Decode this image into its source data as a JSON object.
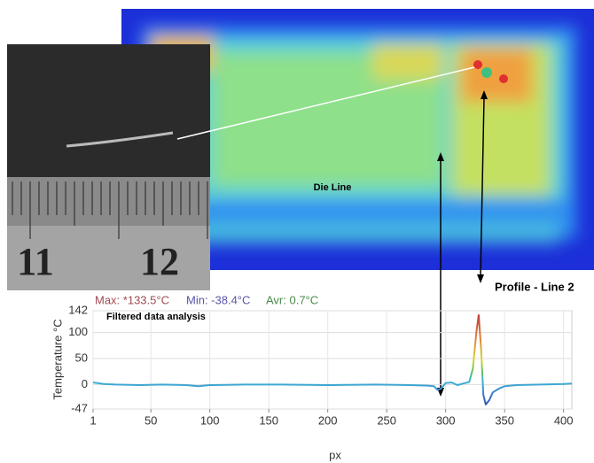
{
  "annotations": {
    "die_line": "Die Line",
    "profile": "Profile - Line 2",
    "filtered": "Filtered data analysis",
    "ruler_labels": [
      "11",
      "12"
    ]
  },
  "chart_data": {
    "type": "line",
    "stats": [
      "Max: *133.5°C",
      "Min: -38.4°C",
      "Avr: 0.7°C"
    ],
    "y_label": "Temperature °C",
    "x_label": "px",
    "x": [
      1,
      10,
      20,
      40,
      60,
      80,
      90,
      100,
      130,
      160,
      200,
      240,
      270,
      285,
      290,
      293,
      296,
      300,
      305,
      310,
      315,
      320,
      323,
      326,
      328,
      330,
      332,
      334,
      337,
      340,
      345,
      350,
      360,
      380,
      400,
      407
    ],
    "series": [
      {
        "color": "#40b4d8",
        "values": [
          4,
          1,
          0,
          -1,
          0,
          -1,
          -3,
          -1,
          0,
          0,
          -1,
          0,
          -1,
          -2,
          -3,
          -10,
          -8,
          3,
          4,
          -1,
          2,
          5,
          30,
          100,
          133.5,
          70,
          -20,
          -38.4,
          -30,
          -15,
          -8,
          -3,
          -1,
          0,
          1,
          2
        ]
      }
    ],
    "xlim": [
      1,
      407
    ],
    "xticks": [
      1,
      50,
      100,
      150,
      200,
      250,
      300,
      350,
      400
    ],
    "ylim": [
      -47,
      142
    ],
    "yticks": [
      -47,
      0,
      50,
      100,
      142
    ],
    "grid": true
  }
}
